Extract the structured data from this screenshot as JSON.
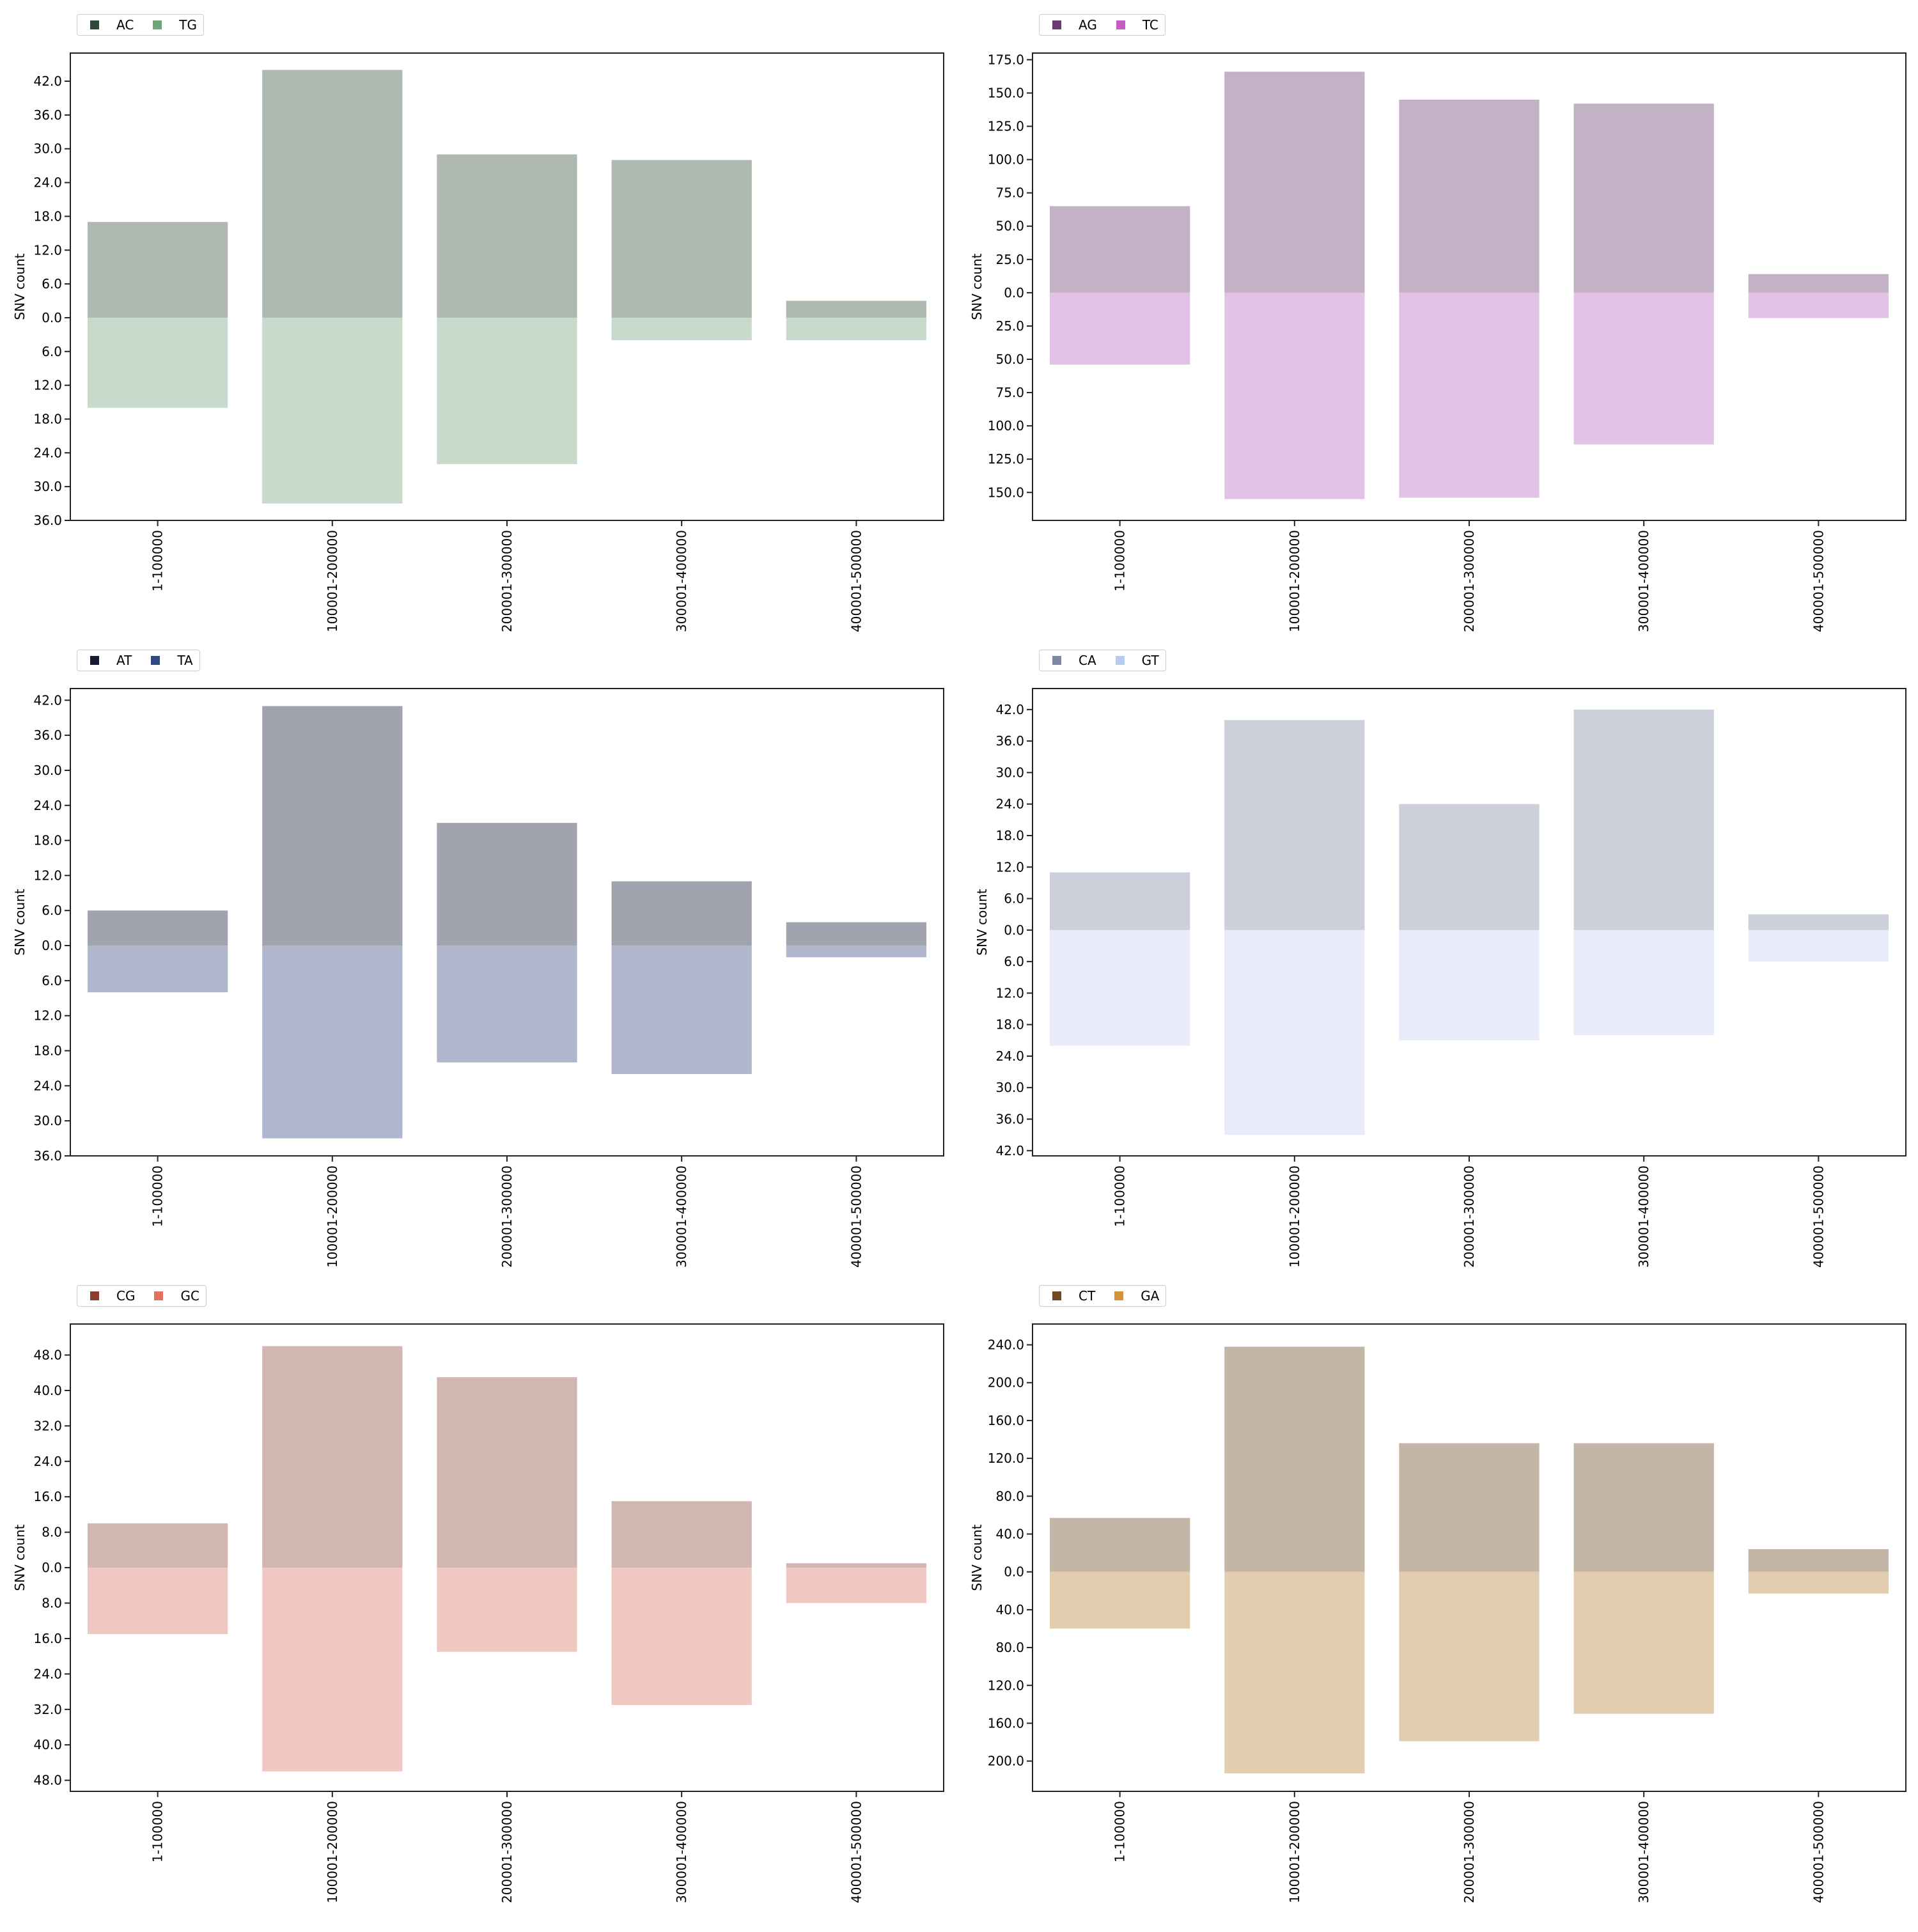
{
  "chart_data": [
    {
      "type": "bar",
      "categories": [
        "1-100000",
        "100001-200000",
        "200001-300000",
        "300001-400000",
        "400001-500000"
      ],
      "ylabel": "SNV count",
      "series": [
        {
          "name": "AC",
          "direction": "up",
          "values": [
            17,
            44,
            29,
            28,
            3
          ],
          "legend_color": "#2e4a36",
          "bar_color": "#afb9b0"
        },
        {
          "name": "TG",
          "direction": "down",
          "values": [
            16,
            33,
            26,
            4,
            4
          ],
          "legend_color": "#6ea57a",
          "bar_color": "#c7dacc"
        }
      ],
      "yticks_up": [
        "6.0",
        "12.0",
        "18.0",
        "24.0",
        "30.0",
        "36.0",
        "42.0"
      ],
      "yticks_down": [
        "6.0",
        "12.0",
        "18.0",
        "24.0",
        "30.0",
        "36.0"
      ],
      "zero_label": "0.0",
      "ylim": [
        -36,
        47
      ]
    },
    {
      "type": "bar",
      "categories": [
        "1-100000",
        "100001-200000",
        "200001-300000",
        "300001-400000",
        "400001-500000"
      ],
      "ylabel": "SNV count",
      "series": [
        {
          "name": "AG",
          "direction": "up",
          "values": [
            65,
            166,
            145,
            142,
            14
          ],
          "legend_color": "#6b3a6e",
          "bar_color": "#c3b2c5"
        },
        {
          "name": "TC",
          "direction": "down",
          "values": [
            54,
            155,
            154,
            114,
            19
          ],
          "legend_color": "#c65bc6",
          "bar_color": "#e2c3e5"
        }
      ],
      "yticks_up": [
        "25.0",
        "50.0",
        "75.0",
        "100.0",
        "125.0",
        "150.0",
        "175.0"
      ],
      "yticks_down": [
        "25.0",
        "50.0",
        "75.0",
        "100.0",
        "125.0",
        "150.0"
      ],
      "zero_label": "0.0",
      "ylim": [
        -171,
        180
      ]
    },
    {
      "type": "bar",
      "categories": [
        "1-100000",
        "100001-200000",
        "200001-300000",
        "300001-400000",
        "400001-500000"
      ],
      "ylabel": "SNV count",
      "series": [
        {
          "name": "AT",
          "direction": "up",
          "values": [
            6,
            41,
            21,
            11,
            4
          ],
          "legend_color": "#141b33",
          "bar_color": "#a1a4ae"
        },
        {
          "name": "TA",
          "direction": "down",
          "values": [
            8,
            33,
            20,
            22,
            2
          ],
          "legend_color": "#314887",
          "bar_color": "#b0b6cc"
        }
      ],
      "yticks_up": [
        "6.0",
        "12.0",
        "18.0",
        "24.0",
        "30.0",
        "36.0",
        "42.0"
      ],
      "yticks_down": [
        "6.0",
        "12.0",
        "18.0",
        "24.0",
        "30.0",
        "36.0"
      ],
      "zero_label": "0.0",
      "ylim": [
        -36,
        44
      ]
    },
    {
      "type": "bar",
      "categories": [
        "1-100000",
        "100001-200000",
        "200001-300000",
        "300001-400000",
        "400001-500000"
      ],
      "ylabel": "SNV count",
      "series": [
        {
          "name": "CA",
          "direction": "up",
          "values": [
            11,
            40,
            24,
            42,
            3
          ],
          "legend_color": "#7e86a2",
          "bar_color": "#cbd0db"
        },
        {
          "name": "GT",
          "direction": "down",
          "values": [
            22,
            39,
            21,
            20,
            6
          ],
          "legend_color": "#b9cbef",
          "bar_color": "#e8ebf9"
        }
      ],
      "yticks_up": [
        "6.0",
        "12.0",
        "18.0",
        "24.0",
        "30.0",
        "36.0",
        "42.0"
      ],
      "yticks_down": [
        "6.0",
        "12.0",
        "18.0",
        "24.0",
        "30.0",
        "36.0",
        "42.0"
      ],
      "zero_label": "0.0",
      "ylim": [
        -43,
        46
      ]
    },
    {
      "type": "bar",
      "categories": [
        "1-100000",
        "100001-200000",
        "200001-300000",
        "300001-400000",
        "400001-500000"
      ],
      "ylabel": "SNV count",
      "series": [
        {
          "name": "CG",
          "direction": "up",
          "values": [
            10,
            50,
            43,
            15,
            1
          ],
          "legend_color": "#8b3e30",
          "bar_color": "#d1b6b1"
        },
        {
          "name": "GC",
          "direction": "down",
          "values": [
            15,
            46,
            19,
            31,
            8
          ],
          "legend_color": "#e4705e",
          "bar_color": "#eec8c1"
        }
      ],
      "yticks_up": [
        "8.0",
        "16.0",
        "24.0",
        "32.0",
        "40.0",
        "48.0"
      ],
      "yticks_down": [
        "8.0",
        "16.0",
        "24.0",
        "32.0",
        "40.0",
        "48.0"
      ],
      "zero_label": "0.0",
      "ylim": [
        -50.5,
        55
      ]
    },
    {
      "type": "bar",
      "categories": [
        "1-100000",
        "100001-200000",
        "200001-300000",
        "300001-400000",
        "400001-500000"
      ],
      "ylabel": "SNV count",
      "series": [
        {
          "name": "CT",
          "direction": "up",
          "values": [
            57,
            238,
            136,
            136,
            24
          ],
          "legend_color": "#6e4a1c",
          "bar_color": "#c4b6a6"
        },
        {
          "name": "GA",
          "direction": "down",
          "values": [
            60,
            213,
            179,
            150,
            23
          ],
          "legend_color": "#d69238",
          "bar_color": "#e2cdb1"
        }
      ],
      "yticks_up": [
        "40.0",
        "80.0",
        "120.0",
        "160.0",
        "200.0",
        "240.0"
      ],
      "yticks_down": [
        "40.0",
        "80.0",
        "120.0",
        "160.0",
        "200.0"
      ],
      "zero_label": "0.0",
      "ylim": [
        -232,
        262
      ]
    }
  ]
}
